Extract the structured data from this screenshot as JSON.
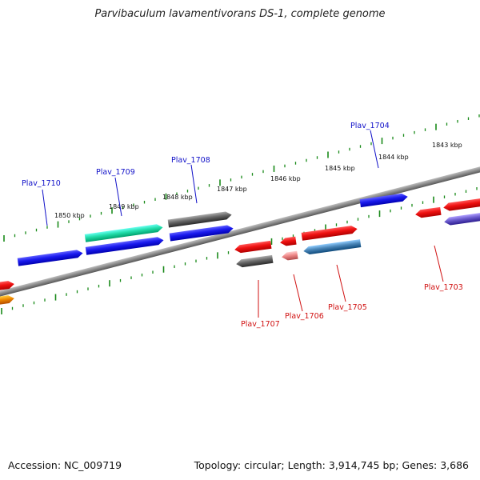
{
  "title": "Parvibaculum lavamentivorans DS-1, complete genome",
  "footer": {
    "accession": "Accession: NC_009719",
    "summary": "Topology: circular; Length: 3,914,745 bp; Genes: 3,686"
  },
  "ticks": [
    {
      "label": "1843 kbp"
    },
    {
      "label": "1844 kbp"
    },
    {
      "label": "1845 kbp"
    },
    {
      "label": "1846 kbp"
    },
    {
      "label": "1847 kbp"
    },
    {
      "label": "1848 kbp"
    },
    {
      "label": "1849 kbp"
    },
    {
      "label": "1850 kbp"
    }
  ],
  "gene_labels": [
    {
      "name": "Plav_1710",
      "strand": "forward"
    },
    {
      "name": "Plav_1709",
      "strand": "forward"
    },
    {
      "name": "Plav_1708",
      "strand": "forward"
    },
    {
      "name": "Plav_1704",
      "strand": "forward"
    },
    {
      "name": "Plav_1707",
      "strand": "reverse"
    },
    {
      "name": "Plav_1706",
      "strand": "reverse"
    },
    {
      "name": "Plav_1705",
      "strand": "reverse"
    },
    {
      "name": "Plav_1703",
      "strand": "reverse"
    }
  ],
  "colors": {
    "forward_label": "#1010c8",
    "reverse_label": "#d01010",
    "tick_mark": "#1a8a1a",
    "backbone": "#8a8a8a",
    "blue": "#1a1aee",
    "red": "#ee1111",
    "gray": "#666666",
    "green": "#22ddaa",
    "pink": "#ee8888",
    "steel": "#4a86b8",
    "purple": "#6a5acd",
    "orange": "#f08a00"
  }
}
